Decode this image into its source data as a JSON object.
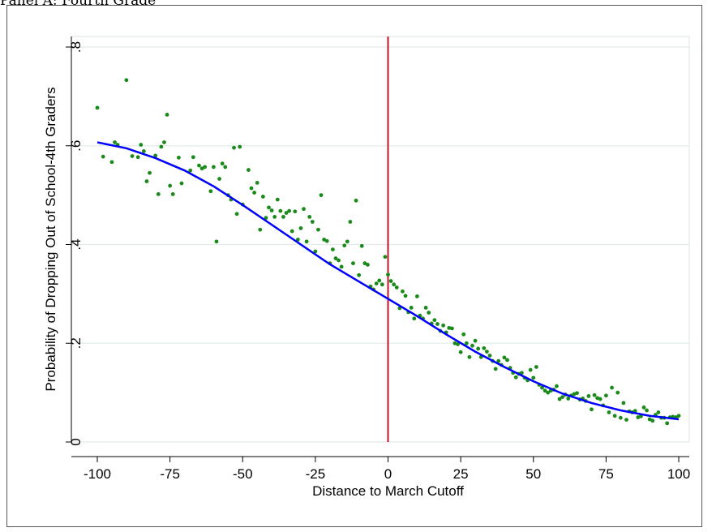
{
  "panel_title": "Panel A: Fourth Grade",
  "colors": {
    "points": "#1a8a1a",
    "fit": "#0000ff",
    "cutoff": "#c8102e",
    "grid": "#e2ecec",
    "plot_border": "#d8e6e6"
  },
  "chart_data": {
    "type": "scatter",
    "title": "",
    "xlabel": "Distance to March Cutoff",
    "ylabel": "Probability of Dropping Out of School-4th Graders",
    "xlim": [
      -100,
      100
    ],
    "ylim": [
      0,
      0.8
    ],
    "x_ticks": [
      -100,
      -75,
      -50,
      -25,
      0,
      25,
      50,
      75,
      100
    ],
    "x_tick_labels": [
      "-100",
      "-75",
      "-50",
      "-25",
      "0",
      "25",
      "50",
      "75",
      "100"
    ],
    "y_ticks": [
      0,
      0.2,
      0.4,
      0.6,
      0.8
    ],
    "y_tick_labels": [
      "0",
      ".2",
      ".4",
      ".6",
      ".8"
    ],
    "grid": true,
    "vertical_line_x": 0,
    "fit_line": {
      "x": [
        -100,
        -90,
        -80,
        -70,
        -60,
        -50,
        -40,
        -30,
        -20,
        -10,
        0,
        10,
        20,
        30,
        40,
        50,
        60,
        70,
        80,
        90,
        100
      ],
      "y": [
        0.607,
        0.595,
        0.575,
        0.55,
        0.518,
        0.48,
        0.44,
        0.4,
        0.36,
        0.325,
        0.29,
        0.255,
        0.218,
        0.183,
        0.152,
        0.123,
        0.098,
        0.079,
        0.064,
        0.053,
        0.046
      ]
    },
    "points": [
      [
        -100,
        0.677
      ],
      [
        -98,
        0.578
      ],
      [
        -95,
        0.567
      ],
      [
        -94,
        0.607
      ],
      [
        -93,
        0.602
      ],
      [
        -90,
        0.733
      ],
      [
        -88,
        0.579
      ],
      [
        -86,
        0.577
      ],
      [
        -85,
        0.602
      ],
      [
        -84,
        0.589
      ],
      [
        -83,
        0.528
      ],
      [
        -82,
        0.545
      ],
      [
        -80,
        0.58
      ],
      [
        -79,
        0.502
      ],
      [
        -78,
        0.598
      ],
      [
        -77,
        0.607
      ],
      [
        -76,
        0.663
      ],
      [
        -75,
        0.519
      ],
      [
        -74,
        0.502
      ],
      [
        -72,
        0.576
      ],
      [
        -71,
        0.524
      ],
      [
        -68,
        0.55
      ],
      [
        -67,
        0.577
      ],
      [
        -65,
        0.56
      ],
      [
        -64,
        0.554
      ],
      [
        -63,
        0.557
      ],
      [
        -61,
        0.508
      ],
      [
        -60,
        0.557
      ],
      [
        -59,
        0.406
      ],
      [
        -58,
        0.533
      ],
      [
        -57,
        0.564
      ],
      [
        -56,
        0.557
      ],
      [
        -55,
        0.5
      ],
      [
        -54,
        0.491
      ],
      [
        -53,
        0.596
      ],
      [
        -52,
        0.462
      ],
      [
        -51,
        0.598
      ],
      [
        -50,
        0.481
      ],
      [
        -48,
        0.551
      ],
      [
        -47,
        0.514
      ],
      [
        -46,
        0.505
      ],
      [
        -45,
        0.525
      ],
      [
        -44,
        0.43
      ],
      [
        -43,
        0.497
      ],
      [
        -42,
        0.454
      ],
      [
        -41,
        0.475
      ],
      [
        -40,
        0.469
      ],
      [
        -39,
        0.456
      ],
      [
        -38,
        0.491
      ],
      [
        -37,
        0.468
      ],
      [
        -36,
        0.456
      ],
      [
        -35,
        0.464
      ],
      [
        -34,
        0.468
      ],
      [
        -33,
        0.427
      ],
      [
        -32,
        0.467
      ],
      [
        -31,
        0.41
      ],
      [
        -30,
        0.433
      ],
      [
        -29,
        0.472
      ],
      [
        -28,
        0.406
      ],
      [
        -27,
        0.456
      ],
      [
        -26,
        0.446
      ],
      [
        -25,
        0.386
      ],
      [
        -24,
        0.43
      ],
      [
        -23,
        0.5
      ],
      [
        -22,
        0.41
      ],
      [
        -21,
        0.407
      ],
      [
        -20,
        0.362
      ],
      [
        -19,
        0.39
      ],
      [
        -18,
        0.372
      ],
      [
        -17,
        0.368
      ],
      [
        -16,
        0.355
      ],
      [
        -15,
        0.398
      ],
      [
        -14,
        0.406
      ],
      [
        -13,
        0.446
      ],
      [
        -12,
        0.362
      ],
      [
        -11,
        0.489
      ],
      [
        -10,
        0.338
      ],
      [
        -9,
        0.397
      ],
      [
        -8,
        0.362
      ],
      [
        -7,
        0.359
      ],
      [
        -6,
        0.315
      ],
      [
        -5,
        0.309
      ],
      [
        -4,
        0.321
      ],
      [
        -3,
        0.327
      ],
      [
        -2,
        0.319
      ],
      [
        -1,
        0.375
      ],
      [
        0,
        0.339
      ],
      [
        1,
        0.326
      ],
      [
        2,
        0.319
      ],
      [
        3,
        0.313
      ],
      [
        4,
        0.271
      ],
      [
        5,
        0.305
      ],
      [
        6,
        0.296
      ],
      [
        7,
        0.263
      ],
      [
        8,
        0.272
      ],
      [
        9,
        0.25
      ],
      [
        10,
        0.295
      ],
      [
        11,
        0.256
      ],
      [
        12,
        0.25
      ],
      [
        13,
        0.272
      ],
      [
        14,
        0.262
      ],
      [
        15,
        0.24
      ],
      [
        16,
        0.247
      ],
      [
        17,
        0.239
      ],
      [
        18,
        0.225
      ],
      [
        19,
        0.236
      ],
      [
        20,
        0.222
      ],
      [
        21,
        0.231
      ],
      [
        22,
        0.23
      ],
      [
        23,
        0.2
      ],
      [
        24,
        0.198
      ],
      [
        25,
        0.182
      ],
      [
        26,
        0.218
      ],
      [
        27,
        0.2
      ],
      [
        28,
        0.172
      ],
      [
        29,
        0.195
      ],
      [
        30,
        0.205
      ],
      [
        31,
        0.189
      ],
      [
        32,
        0.172
      ],
      [
        33,
        0.19
      ],
      [
        34,
        0.183
      ],
      [
        35,
        0.175
      ],
      [
        36,
        0.164
      ],
      [
        37,
        0.148
      ],
      [
        38,
        0.164
      ],
      [
        39,
        0.156
      ],
      [
        40,
        0.171
      ],
      [
        41,
        0.166
      ],
      [
        42,
        0.15
      ],
      [
        43,
        0.14
      ],
      [
        44,
        0.131
      ],
      [
        45,
        0.138
      ],
      [
        46,
        0.14
      ],
      [
        47,
        0.13
      ],
      [
        48,
        0.125
      ],
      [
        49,
        0.146
      ],
      [
        50,
        0.13
      ],
      [
        51,
        0.152
      ],
      [
        52,
        0.116
      ],
      [
        53,
        0.11
      ],
      [
        54,
        0.104
      ],
      [
        55,
        0.1
      ],
      [
        56,
        0.104
      ],
      [
        57,
        0.106
      ],
      [
        58,
        0.113
      ],
      [
        59,
        0.087
      ],
      [
        60,
        0.091
      ],
      [
        61,
        0.096
      ],
      [
        62,
        0.088
      ],
      [
        63,
        0.094
      ],
      [
        64,
        0.097
      ],
      [
        65,
        0.099
      ],
      [
        66,
        0.086
      ],
      [
        67,
        0.088
      ],
      [
        68,
        0.083
      ],
      [
        69,
        0.093
      ],
      [
        70,
        0.066
      ],
      [
        71,
        0.095
      ],
      [
        72,
        0.089
      ],
      [
        73,
        0.087
      ],
      [
        74,
        0.074
      ],
      [
        75,
        0.094
      ],
      [
        76,
        0.06
      ],
      [
        77,
        0.11
      ],
      [
        78,
        0.053
      ],
      [
        79,
        0.1
      ],
      [
        80,
        0.049
      ],
      [
        81,
        0.079
      ],
      [
        82,
        0.045
      ],
      [
        83,
        0.062
      ],
      [
        84,
        0.06
      ],
      [
        85,
        0.063
      ],
      [
        86,
        0.05
      ],
      [
        87,
        0.052
      ],
      [
        88,
        0.07
      ],
      [
        89,
        0.064
      ],
      [
        90,
        0.046
      ],
      [
        91,
        0.043
      ],
      [
        92,
        0.055
      ],
      [
        93,
        0.06
      ],
      [
        94,
        0.049
      ],
      [
        95,
        0.049
      ],
      [
        96,
        0.038
      ],
      [
        97,
        0.05
      ],
      [
        98,
        0.051
      ],
      [
        99,
        0.05
      ],
      [
        100,
        0.053
      ]
    ]
  }
}
